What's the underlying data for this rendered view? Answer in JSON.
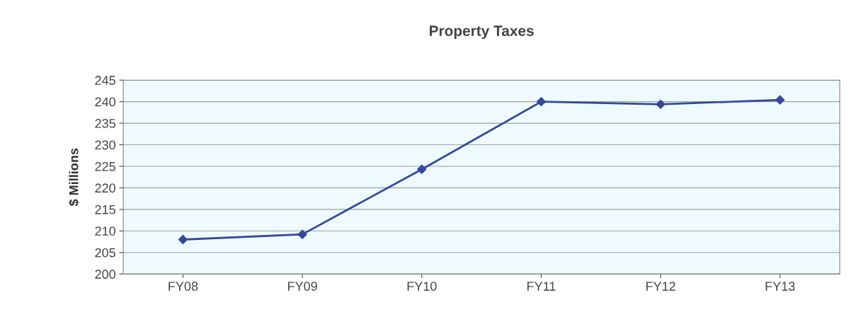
{
  "chart_data": {
    "type": "line",
    "title": "Property Taxes",
    "ylabel": "$ Millions",
    "categories": [
      "FY08",
      "FY09",
      "FY10",
      "FY11",
      "FY12",
      "FY13"
    ],
    "series": [
      {
        "color": "#34489a",
        "values": [
          208.0,
          209.2,
          224.3,
          240.0,
          239.4,
          240.4
        ]
      }
    ],
    "ylim": [
      200,
      245
    ],
    "yticks": [
      200,
      205,
      210,
      215,
      220,
      225,
      230,
      235,
      240,
      245
    ],
    "grid": "y",
    "marker": "diamond",
    "line_style": "solid",
    "legend": false
  }
}
